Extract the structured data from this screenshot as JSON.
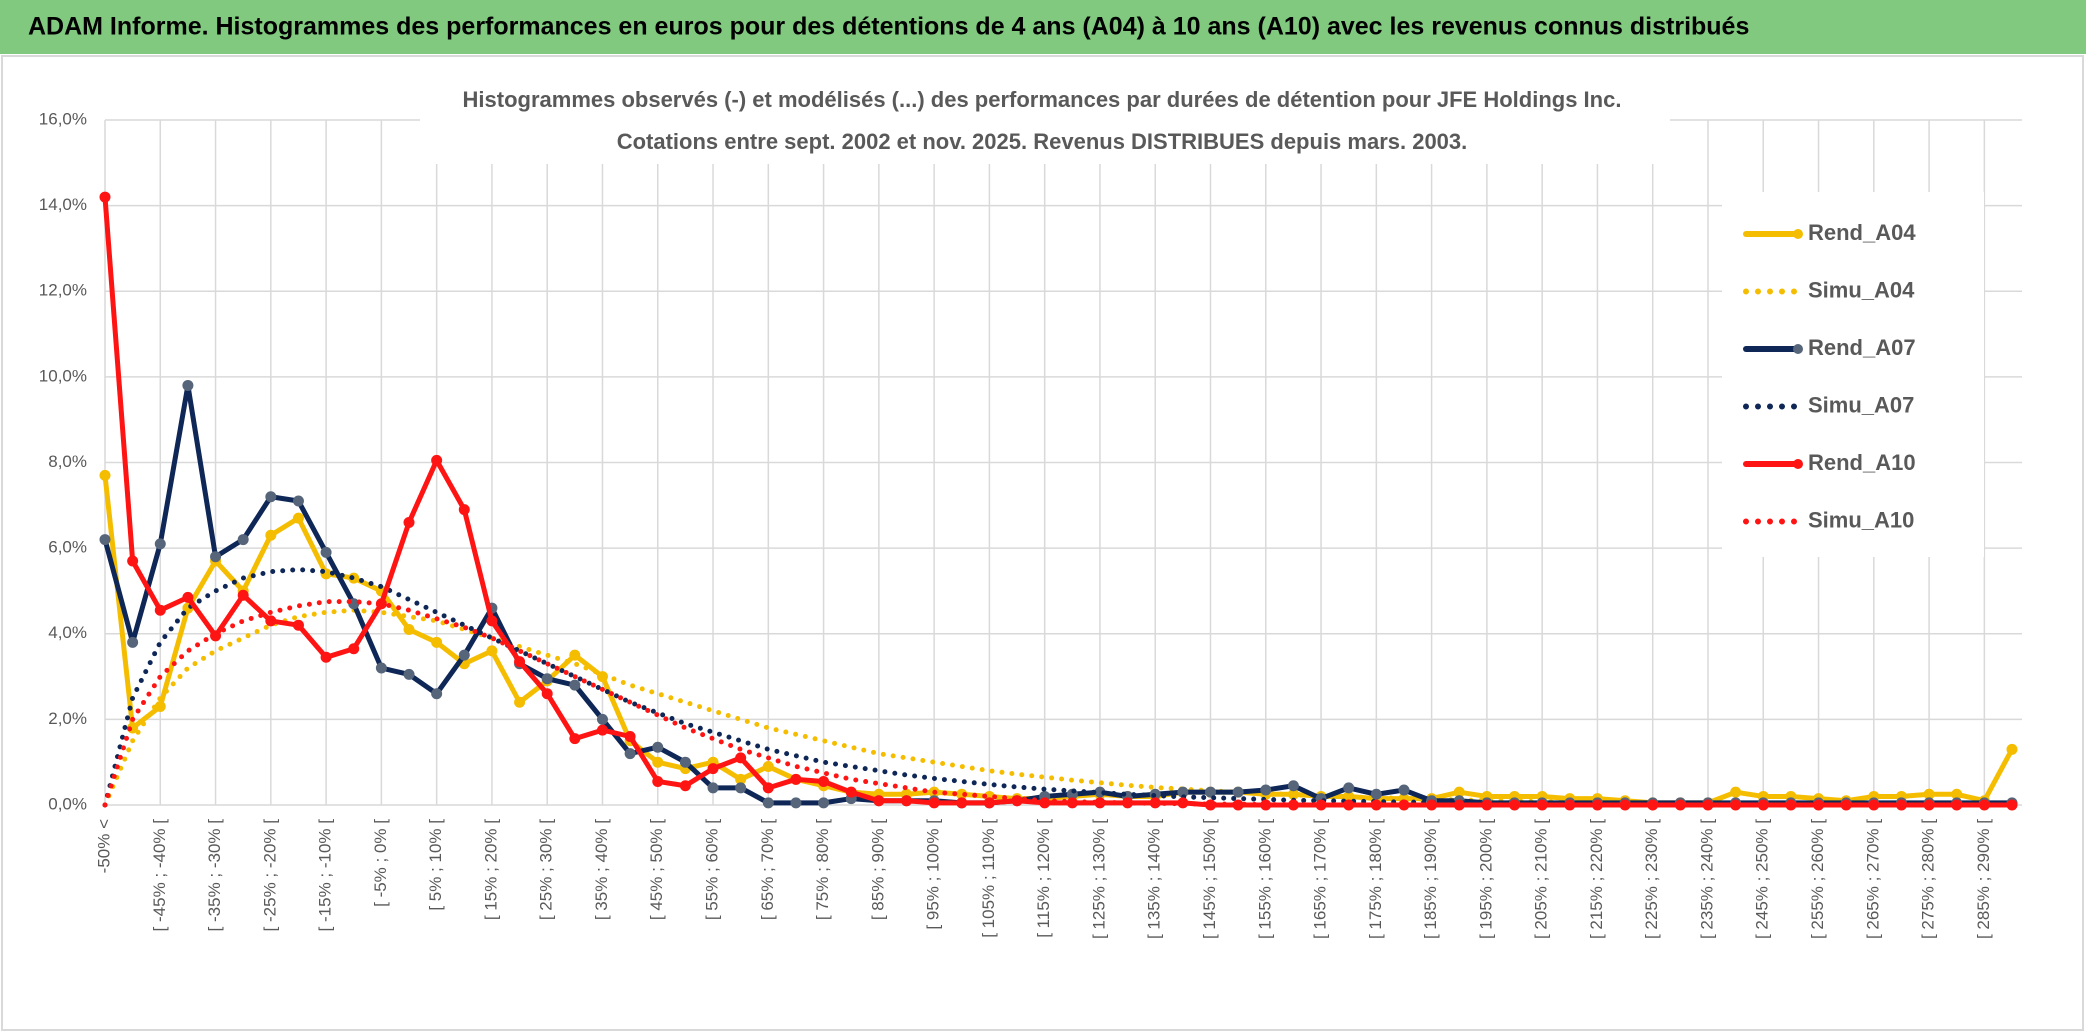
{
  "banner": {
    "title": "ADAM Informe. Histogrammes des performances en euros pour des détentions de 4 ans (A04) à 10 ans (A10) avec les revenus connus distribués"
  },
  "chart_data": {
    "type": "line",
    "title": "Histogrammes observés (-) et modélisés (...) des performances par durées de détention pour JFE Holdings Inc.",
    "subtitle": "Cotations entre sept. 2002 et nov. 2025. Revenus DISTRIBUES depuis mars. 2003.",
    "categories": [
      "-50% <",
      null,
      "[ -45% ; -40% [",
      null,
      "[ -35% ; -30% [",
      null,
      "[ -25% ; -20% [",
      null,
      "[ -15% ; -10% [",
      null,
      "[ -5% ; 0% [",
      null,
      "[ 5% ; 10% [",
      null,
      "[ 15% ; 20% [",
      null,
      "[ 25% ; 30% [",
      null,
      "[ 35% ; 40% [",
      null,
      "[ 45% ; 50% [",
      null,
      "[ 55% ; 60% [",
      null,
      "[ 65% ; 70% [",
      null,
      "[ 75% ; 80% [",
      null,
      "[ 85% ; 90% [",
      null,
      "[ 95% ; 100% [",
      null,
      "[ 105% ; 110% [",
      null,
      "[ 115% ; 120% [",
      null,
      "[ 125% ; 130% [",
      null,
      "[ 135% ; 140% [",
      null,
      "[ 145% ; 150% [",
      null,
      "[ 155% ; 160% [",
      null,
      "[ 165% ; 170% [",
      null,
      "[ 175% ; 180% [",
      null,
      "[ 185% ; 190% [",
      null,
      "[ 195% ; 200% [",
      null,
      "[ 205% ; 210% [",
      null,
      "[ 215% ; 220% [",
      null,
      "[ 225% ; 230% [",
      null,
      "[ 235% ; 240% [",
      null,
      "[ 245% ; 250% [",
      null,
      "[ 255% ; 260% [",
      null,
      "[ 265% ; 270% [",
      null,
      "[ 275% ; 280% [",
      null,
      "[ 285% ; 290% [",
      null
    ],
    "series": [
      {
        "name": "Rend_A04",
        "color": "#f5bd00",
        "marker_color": "#f5bd00",
        "style": "solid",
        "values": [
          7.7,
          1.8,
          2.3,
          4.6,
          5.7,
          5.0,
          6.3,
          6.7,
          5.4,
          5.3,
          5.0,
          4.1,
          3.8,
          3.3,
          3.6,
          2.4,
          2.9,
          3.5,
          3.0,
          1.5,
          1.0,
          0.85,
          1.0,
          0.6,
          0.9,
          0.6,
          0.45,
          0.3,
          0.25,
          0.25,
          0.3,
          0.25,
          0.2,
          0.15,
          0.15,
          0.2,
          0.25,
          0.2,
          0.2,
          0.3,
          0.3,
          0.3,
          0.25,
          0.25,
          0.2,
          0.2,
          0.15,
          0.15,
          0.15,
          0.3,
          0.2,
          0.2,
          0.2,
          0.15,
          0.15,
          0.1,
          0.05,
          0.05,
          0.05,
          0.3,
          0.2,
          0.2,
          0.15,
          0.1,
          0.2,
          0.2,
          0.25,
          0.25,
          0.1,
          1.3
        ]
      },
      {
        "name": "Simu_A04",
        "color": "#f5bd00",
        "style": "dotted",
        "values": [
          0,
          1.5,
          2.5,
          3.2,
          3.6,
          3.9,
          4.2,
          4.4,
          4.5,
          4.55,
          4.5,
          4.4,
          4.3,
          4.1,
          3.9,
          3.7,
          3.5,
          3.3,
          3.05,
          2.8,
          2.6,
          2.4,
          2.2,
          2.0,
          1.8,
          1.65,
          1.5,
          1.35,
          1.2,
          1.1,
          1.0,
          0.9,
          0.8,
          0.72,
          0.65,
          0.58,
          0.52,
          0.46,
          0.41,
          0.37,
          0.33,
          0.3,
          0.27,
          0.24,
          0.21,
          0.19,
          0.17,
          0.15,
          0.13,
          0.12,
          0.1,
          0.09,
          0.08,
          0.07,
          0.06,
          0.05,
          0.05,
          0.04,
          0.04,
          0.03,
          0.03,
          0.03,
          0.02,
          0.02,
          0.02,
          0.02,
          0.01,
          0.01,
          0.01,
          0.01
        ]
      },
      {
        "name": "Rend_A07",
        "color": "#0e2757",
        "marker_color": "#56657a",
        "style": "solid",
        "values": [
          6.2,
          3.8,
          6.1,
          9.8,
          5.8,
          6.2,
          7.2,
          7.1,
          5.9,
          4.7,
          3.2,
          3.05,
          2.6,
          3.5,
          4.6,
          3.3,
          2.95,
          2.8,
          2.0,
          1.2,
          1.35,
          1.0,
          0.4,
          0.4,
          0.05,
          0.05,
          0.05,
          0.15,
          0.1,
          0.1,
          0.1,
          0.05,
          0.05,
          0.1,
          0.2,
          0.25,
          0.3,
          0.2,
          0.25,
          0.3,
          0.3,
          0.3,
          0.35,
          0.45,
          0.15,
          0.4,
          0.25,
          0.35,
          0.1,
          0.1,
          0.05,
          0.05,
          0.05,
          0.05,
          0.05,
          0.05,
          0.05,
          0.05,
          0.05,
          0.05,
          0.05,
          0.05,
          0.05,
          0.05,
          0.05,
          0.05,
          0.05,
          0.05,
          0.05,
          0.05
        ]
      },
      {
        "name": "Simu_A07",
        "color": "#0e2757",
        "style": "dotted",
        "values": [
          0,
          2.5,
          3.8,
          4.6,
          5.0,
          5.3,
          5.45,
          5.5,
          5.45,
          5.3,
          5.1,
          4.8,
          4.5,
          4.2,
          3.9,
          3.6,
          3.3,
          3.0,
          2.7,
          2.4,
          2.15,
          1.9,
          1.7,
          1.5,
          1.3,
          1.15,
          1.0,
          0.9,
          0.8,
          0.7,
          0.62,
          0.55,
          0.48,
          0.42,
          0.37,
          0.33,
          0.29,
          0.25,
          0.22,
          0.19,
          0.17,
          0.15,
          0.13,
          0.11,
          0.1,
          0.09,
          0.08,
          0.07,
          0.06,
          0.05,
          0.04,
          0.04,
          0.03,
          0.03,
          0.02,
          0.02,
          0.02,
          0.01,
          0.01,
          0.01,
          0.01,
          0.01,
          0.01,
          0,
          0,
          0,
          0,
          0,
          0,
          0
        ]
      },
      {
        "name": "Rend_A10",
        "color": "#ff1414",
        "marker_color": "#ff1414",
        "style": "solid",
        "values": [
          14.2,
          5.7,
          4.55,
          4.85,
          3.95,
          4.9,
          4.3,
          4.2,
          3.45,
          3.65,
          4.7,
          6.6,
          8.05,
          6.9,
          4.3,
          3.35,
          2.6,
          1.55,
          1.75,
          1.6,
          0.55,
          0.45,
          0.85,
          1.1,
          0.4,
          0.6,
          0.55,
          0.3,
          0.1,
          0.1,
          0.05,
          0.05,
          0.05,
          0.1,
          0.05,
          0.05,
          0.05,
          0.05,
          0.05,
          0.05,
          0,
          0,
          0,
          0,
          0,
          0,
          0,
          0,
          0,
          0,
          0,
          0,
          0,
          0,
          0,
          0,
          0,
          0,
          0,
          0,
          0,
          0,
          0,
          0,
          0,
          0,
          0,
          0,
          0,
          0
        ]
      },
      {
        "name": "Simu_A10",
        "color": "#ff1414",
        "style": "dotted",
        "values": [
          0,
          2.0,
          3.0,
          3.6,
          4.0,
          4.3,
          4.5,
          4.65,
          4.75,
          4.75,
          4.7,
          4.55,
          4.35,
          4.15,
          3.9,
          3.6,
          3.3,
          3.0,
          2.7,
          2.4,
          2.1,
          1.8,
          1.55,
          1.3,
          1.1,
          0.9,
          0.75,
          0.6,
          0.5,
          0.4,
          0.3,
          0.25,
          0.2,
          0.15,
          0.1,
          0.08,
          0.06,
          0.05,
          0.04,
          0.03,
          0.02,
          0.02,
          0.01,
          0.01,
          0.01,
          0,
          0,
          0,
          0,
          0,
          0,
          0,
          0,
          0,
          0,
          0,
          0,
          0,
          0,
          0,
          0,
          0,
          0,
          0,
          0,
          0,
          0,
          0,
          0,
          0
        ]
      }
    ],
    "ylim": [
      0,
      16
    ],
    "yticks": [
      {
        "value": 0,
        "label": "0,0%"
      },
      {
        "value": 2,
        "label": "2,0%"
      },
      {
        "value": 4,
        "label": "4,0%"
      },
      {
        "value": 6,
        "label": "6,0%"
      },
      {
        "value": 8,
        "label": "8,0%"
      },
      {
        "value": 10,
        "label": "10,0%"
      },
      {
        "value": 12,
        "label": "12,0%"
      },
      {
        "value": 14,
        "label": "14,0%"
      },
      {
        "value": 16,
        "label": "16,0%"
      }
    ],
    "grid": true,
    "legend": "top-right"
  }
}
